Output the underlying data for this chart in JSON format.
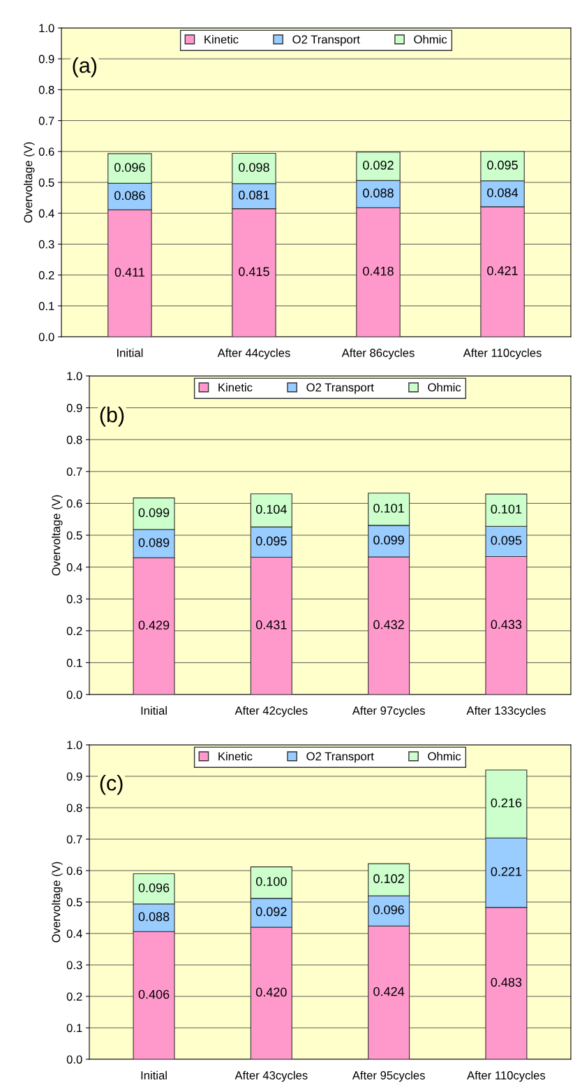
{
  "chart_data": [
    {
      "type": "bar",
      "stacked": true,
      "ylabel": "Overvoltage (V)",
      "annotations": [
        "(a)"
      ],
      "categories": [
        "Initial",
        "After 44cycles",
        "After 86cycles",
        "After 110cycles"
      ],
      "series": [
        {
          "name": "Kinetic",
          "color": "#ff99cc",
          "values": [
            0.411,
            0.415,
            0.418,
            0.421
          ],
          "value_labels": [
            "0.411",
            "0.415",
            "0.418",
            "0.421"
          ]
        },
        {
          "name": "O2 Transport",
          "color": "#99ccff",
          "values": [
            0.086,
            0.081,
            0.088,
            0.084
          ],
          "value_labels": [
            "0.086",
            "0.081",
            "0.088",
            "0.084"
          ]
        },
        {
          "name": "Ohmic",
          "color": "#ccffcc",
          "values": [
            0.096,
            0.098,
            0.092,
            0.095
          ],
          "value_labels": [
            "0.096",
            "0.098",
            "0.092",
            "0.095"
          ]
        }
      ],
      "ylim": [
        0,
        1
      ],
      "yticks": [
        {
          "value": 0,
          "label": "0.0"
        },
        {
          "value": 0.1,
          "label": "0.1"
        },
        {
          "value": 0.2,
          "label": "0.2"
        },
        {
          "value": 0.3,
          "label": "0.3"
        },
        {
          "value": 0.4,
          "label": "0.4"
        },
        {
          "value": 0.5,
          "label": "0.5"
        },
        {
          "value": 0.6,
          "label": "0.6"
        },
        {
          "value": 0.7,
          "label": "0.7"
        },
        {
          "value": 0.8,
          "label": "0.8"
        },
        {
          "value": 0.9,
          "label": "0.9"
        },
        {
          "value": 1,
          "label": "1.0"
        }
      ],
      "grid": "y",
      "legend": "top"
    },
    {
      "type": "bar",
      "stacked": true,
      "ylabel": "Overvoltage (V)",
      "annotations": [
        "(b)"
      ],
      "categories": [
        "Initial",
        "After 42cycles",
        "After 97cycles",
        "After 133cycles"
      ],
      "series": [
        {
          "name": "Kinetic",
          "color": "#ff99cc",
          "values": [
            0.429,
            0.431,
            0.432,
            0.433
          ],
          "value_labels": [
            "0.429",
            "0.431",
            "0.432",
            "0.433"
          ]
        },
        {
          "name": "O2 Transport",
          "color": "#99ccff",
          "values": [
            0.089,
            0.095,
            0.099,
            0.095
          ],
          "value_labels": [
            "0.089",
            "0.095",
            "0.099",
            "0.095"
          ]
        },
        {
          "name": "Ohmic",
          "color": "#ccffcc",
          "values": [
            0.099,
            0.104,
            0.101,
            0.101
          ],
          "value_labels": [
            "0.099",
            "0.104",
            "0.101",
            "0.101"
          ]
        }
      ],
      "ylim": [
        0,
        1
      ],
      "yticks": [
        {
          "value": 0,
          "label": "0.0"
        },
        {
          "value": 0.1,
          "label": "0.1"
        },
        {
          "value": 0.2,
          "label": "0.2"
        },
        {
          "value": 0.3,
          "label": "0.3"
        },
        {
          "value": 0.4,
          "label": "0.4"
        },
        {
          "value": 0.5,
          "label": "0.5"
        },
        {
          "value": 0.6,
          "label": "0.6"
        },
        {
          "value": 0.7,
          "label": "0.7"
        },
        {
          "value": 0.8,
          "label": "0.8"
        },
        {
          "value": 0.9,
          "label": "0.9"
        },
        {
          "value": 1,
          "label": "1.0"
        }
      ],
      "grid": "y",
      "legend": "top"
    },
    {
      "type": "bar",
      "stacked": true,
      "ylabel": "Overvoltage (V)",
      "annotations": [
        "(c)"
      ],
      "categories": [
        "Initial",
        "After 43cycles",
        "After 95cycles",
        "After 110cycles"
      ],
      "series": [
        {
          "name": "Kinetic",
          "color": "#ff99cc",
          "values": [
            0.406,
            0.42,
            0.424,
            0.483
          ],
          "value_labels": [
            "0.406",
            "0.420",
            "0.424",
            "0.483"
          ]
        },
        {
          "name": "O2 Transport",
          "color": "#99ccff",
          "values": [
            0.088,
            0.092,
            0.096,
            0.221
          ],
          "value_labels": [
            "0.088",
            "0.092",
            "0.096",
            "0.221"
          ]
        },
        {
          "name": "Ohmic",
          "color": "#ccffcc",
          "values": [
            0.096,
            0.1,
            0.102,
            0.216
          ],
          "value_labels": [
            "0.096",
            "0.100",
            "0.102",
            "0.216"
          ]
        }
      ],
      "ylim": [
        0,
        1
      ],
      "yticks": [
        {
          "value": 0,
          "label": "0.0"
        },
        {
          "value": 0.1,
          "label": "0.1"
        },
        {
          "value": 0.2,
          "label": "0.2"
        },
        {
          "value": 0.3,
          "label": "0.3"
        },
        {
          "value": 0.4,
          "label": "0.4"
        },
        {
          "value": 0.5,
          "label": "0.5"
        },
        {
          "value": 0.6,
          "label": "0.6"
        },
        {
          "value": 0.7,
          "label": "0.7"
        },
        {
          "value": 0.8,
          "label": "0.8"
        },
        {
          "value": 0.9,
          "label": "0.9"
        },
        {
          "value": 1,
          "label": "1.0"
        }
      ],
      "grid": "y",
      "legend": "top"
    }
  ]
}
